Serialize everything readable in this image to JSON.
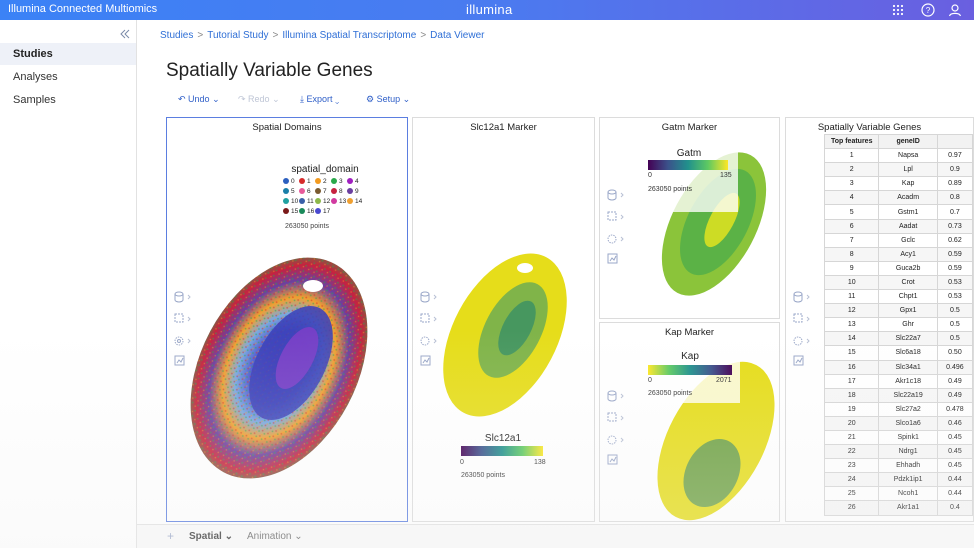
{
  "app": {
    "title": "Illumina Connected Multiomics",
    "brand": "illumina",
    "icons": [
      "apps-grid-icon",
      "help-icon",
      "user-icon"
    ]
  },
  "sidebar": {
    "items": [
      {
        "label": "Studies",
        "active": true
      },
      {
        "label": "Analyses",
        "active": false
      },
      {
        "label": "Samples",
        "active": false
      }
    ]
  },
  "breadcrumb": [
    "Studies",
    "Tutorial Study",
    "Illumina Spatial Transcriptome",
    "Data Viewer"
  ],
  "page": {
    "title": "Spatially Variable Genes"
  },
  "toolbar": {
    "undo": "Undo",
    "redo": "Redo",
    "export": "Export",
    "setup": "Setup"
  },
  "panels": {
    "spatial_domains": {
      "title": "Spatial Domains",
      "legend_title": "spatial_domain",
      "points": "263050 points",
      "domains": [
        {
          "label": "0",
          "color": "#2c5fbf"
        },
        {
          "label": "1",
          "color": "#d62b2b"
        },
        {
          "label": "2",
          "color": "#f29a1f"
        },
        {
          "label": "3",
          "color": "#2aa84a"
        },
        {
          "label": "4",
          "color": "#a020c0"
        },
        {
          "label": "5",
          "color": "#1a7fa8"
        },
        {
          "label": "6",
          "color": "#e85a9a"
        },
        {
          "label": "7",
          "color": "#7a5a30"
        },
        {
          "label": "8",
          "color": "#c6223f"
        },
        {
          "label": "9",
          "color": "#6b3fa0"
        },
        {
          "label": "10",
          "color": "#20a0a0"
        },
        {
          "label": "11",
          "color": "#3a5fa8"
        },
        {
          "label": "12",
          "color": "#8db84a"
        },
        {
          "label": "13",
          "color": "#d13aa0"
        },
        {
          "label": "14",
          "color": "#f0a030"
        },
        {
          "label": "15",
          "color": "#7a1a1a"
        },
        {
          "label": "16",
          "color": "#1a8a5a"
        },
        {
          "label": "17",
          "color": "#4a4ad0"
        }
      ]
    },
    "slc12a1": {
      "title": "Slc12a1 Marker",
      "legend_title": "Slc12a1",
      "min": "0",
      "max": "138",
      "points": "263050 points"
    },
    "gatm": {
      "title": "Gatm Marker",
      "legend_title": "Gatm",
      "min": "0",
      "max": "135",
      "points": "263050 points"
    },
    "kap": {
      "title": "Kap Marker",
      "legend_title": "Kap",
      "min": "0",
      "max": "2071",
      "points": "263050 points"
    },
    "svg_table": {
      "title": "Spatially Variable Genes",
      "headers": [
        "Top features",
        "geneID",
        ""
      ],
      "rows": [
        [
          "1",
          "Napsa",
          "0.97"
        ],
        [
          "2",
          "Lpl",
          "0.9"
        ],
        [
          "3",
          "Kap",
          "0.89"
        ],
        [
          "4",
          "Acadm",
          "0.8"
        ],
        [
          "5",
          "Gstm1",
          "0.7"
        ],
        [
          "6",
          "Aadat",
          "0.73"
        ],
        [
          "7",
          "Gclc",
          "0.62"
        ],
        [
          "8",
          "Acy1",
          "0.59"
        ],
        [
          "9",
          "Guca2b",
          "0.59"
        ],
        [
          "10",
          "Crot",
          "0.53"
        ],
        [
          "11",
          "Chpt1",
          "0.53"
        ],
        [
          "12",
          "Gpx1",
          "0.5"
        ],
        [
          "13",
          "Ghr",
          "0.5"
        ],
        [
          "14",
          "Slc22a7",
          "0.5"
        ],
        [
          "15",
          "Slc6a18",
          "0.50"
        ],
        [
          "16",
          "Slc34a1",
          "0.496"
        ],
        [
          "17",
          "Akr1c18",
          "0.49"
        ],
        [
          "18",
          "Slc22a19",
          "0.49"
        ],
        [
          "19",
          "Slc27a2",
          "0.478"
        ],
        [
          "20",
          "Slco1a6",
          "0.46"
        ],
        [
          "21",
          "Spink1",
          "0.45"
        ],
        [
          "22",
          "Ndrg1",
          "0.45"
        ],
        [
          "23",
          "Ehhadh",
          "0.45"
        ],
        [
          "24",
          "Pdzk1ip1",
          "0.44"
        ],
        [
          "25",
          "Ncoh1",
          "0.44"
        ],
        [
          "26",
          "Akr1a1",
          "0.4"
        ]
      ]
    }
  },
  "bottom": {
    "add": "+",
    "tab_spatial": "Spatial",
    "tab_animation": "Animation"
  }
}
